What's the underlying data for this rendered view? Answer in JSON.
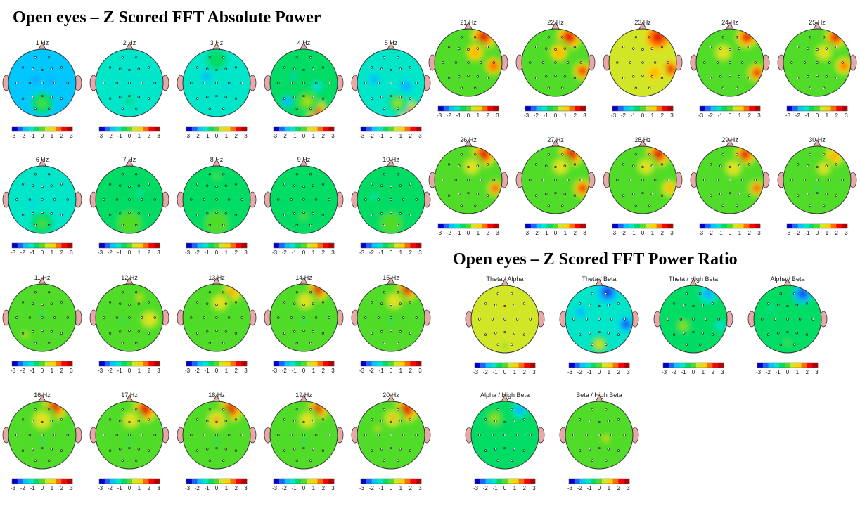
{
  "sections": {
    "absolute_title": "Open eyes – Z Scored FFT Absolute Power",
    "ratio_title": "Open eyes – Z Scored FFT Power Ratio"
  },
  "colors": {
    "scale": [
      "#0000c8",
      "#1e64ff",
      "#00c8ff",
      "#00e6c8",
      "#00dc64",
      "#50dc28",
      "#d2e628",
      "#ffd200",
      "#ff6e00",
      "#ff0000",
      "#b40000"
    ],
    "head_outline": "#333333",
    "ear_fill": "#e8a8a8",
    "electrode": "#000000"
  },
  "colorbar": {
    "ticks": [
      "-3",
      "-2",
      "-1",
      "0",
      "1",
      "2",
      "3"
    ],
    "range": [
      -3,
      3
    ]
  },
  "chart_data": {
    "type": "heatmap",
    "measure": "Z score",
    "layout": {
      "absolute_rows": [
        [
          "1 Hz",
          "2 Hz",
          "3 Hz",
          "4 Hz",
          "5 Hz"
        ],
        [
          "6 Hz",
          "7 Hz",
          "8 Hz",
          "9 Hz",
          "10 Hz"
        ],
        [
          "11 Hz",
          "12 Hz",
          "13 Hz",
          "14 Hz",
          "15 Hz"
        ],
        [
          "16 Hz",
          "17 Hz",
          "18 Hz",
          "19 Hz",
          "20 Hz"
        ],
        [
          "21 Hz",
          "22 Hz",
          "23 Hz",
          "24 Hz",
          "25 Hz"
        ],
        [
          "26 Hz",
          "27 Hz",
          "28 Hz",
          "29 Hz",
          "30 Hz"
        ]
      ],
      "ratio_rows": [
        [
          "Theta / Alpha",
          "Theta / Beta",
          "Theta / High Beta",
          "Alpha / Beta"
        ],
        [
          "Alpha / High Beta",
          "Beta / High Beta"
        ]
      ]
    },
    "maps": {
      "1 Hz": {
        "base": -1.6,
        "spots": [
          {
            "x": -0.2,
            "y": -0.1,
            "r": 0.32,
            "v": -2.4
          },
          {
            "x": 0.25,
            "y": -0.05,
            "r": 0.28,
            "v": -2.2
          },
          {
            "x": 0,
            "y": 0.6,
            "r": 0.45,
            "v": -0.2
          }
        ]
      },
      "2 Hz": {
        "base": -1.4,
        "spots": [
          {
            "x": 0.1,
            "y": -0.1,
            "r": 0.2,
            "v": -2.0
          },
          {
            "x": 0,
            "y": 0.55,
            "r": 0.45,
            "v": -0.6
          }
        ]
      },
      "3 Hz": {
        "base": -1.3,
        "spots": [
          {
            "x": -0.3,
            "y": -0.2,
            "r": 0.2,
            "v": -2.2
          },
          {
            "x": 0.3,
            "y": 0.1,
            "r": 0.25,
            "v": -2.0
          },
          {
            "x": 0,
            "y": -0.7,
            "r": 0.4,
            "v": -0.4
          }
        ]
      },
      "4 Hz": {
        "base": -0.9,
        "spots": [
          {
            "x": 0.35,
            "y": 0.8,
            "r": 0.35,
            "v": 3.0
          },
          {
            "x": 0.1,
            "y": 0.55,
            "r": 0.3,
            "v": 0.9
          },
          {
            "x": -0.5,
            "y": 0.55,
            "r": 0.2,
            "v": -2.2
          },
          {
            "x": 0.4,
            "y": 0.1,
            "r": 0.2,
            "v": -2.0
          },
          {
            "x": -0.3,
            "y": -0.2,
            "r": 0.25,
            "v": -1.6
          }
        ]
      },
      "5 Hz": {
        "base": -1.2,
        "spots": [
          {
            "x": 0.45,
            "y": 0.8,
            "r": 0.35,
            "v": 2.8
          },
          {
            "x": 0.2,
            "y": 0.6,
            "r": 0.3,
            "v": 0.5
          },
          {
            "x": -0.5,
            "y": -0.1,
            "r": 0.2,
            "v": -2.4
          },
          {
            "x": 0.45,
            "y": 0.1,
            "r": 0.25,
            "v": -2.4
          }
        ]
      },
      "6 Hz": {
        "base": -1.5,
        "spots": [
          {
            "x": 0,
            "y": 0.7,
            "r": 0.45,
            "v": -0.3
          },
          {
            "x": -0.3,
            "y": 0.1,
            "r": 0.3,
            "v": -1.9
          }
        ]
      },
      "7 Hz": {
        "base": -0.9,
        "spots": [
          {
            "x": 0,
            "y": 0.7,
            "r": 0.45,
            "v": 0.3
          },
          {
            "x": 0.3,
            "y": -0.2,
            "r": 0.3,
            "v": -1.2
          }
        ]
      },
      "8 Hz": {
        "base": -0.7,
        "spots": [
          {
            "x": 0,
            "y": 0.7,
            "r": 0.45,
            "v": 0.3
          },
          {
            "x": 0,
            "y": -0.7,
            "r": 0.35,
            "v": 0.1
          }
        ]
      },
      "9 Hz": {
        "base": -0.8,
        "spots": [
          {
            "x": 0,
            "y": 0.5,
            "r": 0.4,
            "v": -0.3
          }
        ]
      },
      "10 Hz": {
        "base": -0.6,
        "spots": [
          {
            "x": 0,
            "y": 0.7,
            "r": 0.4,
            "v": 0.3
          },
          {
            "x": -0.5,
            "y": -0.1,
            "r": 0.3,
            "v": -1.0
          }
        ]
      },
      "11 Hz": {
        "base": 0.1,
        "spots": [
          {
            "x": 0,
            "y": -0.1,
            "r": 0.3,
            "v": -0.6
          },
          {
            "x": -0.5,
            "y": 0.5,
            "r": 0.3,
            "v": 0.5
          }
        ]
      },
      "12 Hz": {
        "base": 0.3,
        "spots": [
          {
            "x": 0.6,
            "y": 0.05,
            "r": 0.3,
            "v": 1.4
          },
          {
            "x": 0.3,
            "y": -0.6,
            "r": 0.3,
            "v": 1.0
          },
          {
            "x": -0.2,
            "y": 0.1,
            "r": 0.3,
            "v": -0.4
          }
        ]
      },
      "13 Hz": {
        "base": 0.1,
        "spots": [
          {
            "x": 0.45,
            "y": -0.75,
            "r": 0.3,
            "v": 2.0
          },
          {
            "x": 0.1,
            "y": -0.45,
            "r": 0.3,
            "v": 1.0
          },
          {
            "x": -0.3,
            "y": 0.1,
            "r": 0.3,
            "v": -0.3
          }
        ]
      },
      "14 Hz": {
        "base": 0.1,
        "spots": [
          {
            "x": 0.4,
            "y": -0.8,
            "r": 0.3,
            "v": 2.8
          },
          {
            "x": 0.05,
            "y": -0.5,
            "r": 0.3,
            "v": 1.2
          },
          {
            "x": 0,
            "y": 0.1,
            "r": 0.3,
            "v": -0.6
          }
        ]
      },
      "15 Hz": {
        "base": 0.1,
        "spots": [
          {
            "x": 0.45,
            "y": -0.8,
            "r": 0.3,
            "v": 3.0
          },
          {
            "x": 0.1,
            "y": -0.5,
            "r": 0.3,
            "v": 1.4
          },
          {
            "x": 0,
            "y": 0.1,
            "r": 0.3,
            "v": -0.5
          }
        ]
      },
      "16 Hz": {
        "base": 0.2,
        "spots": [
          {
            "x": 0.35,
            "y": -0.8,
            "r": 0.35,
            "v": 3.2
          },
          {
            "x": 0,
            "y": -0.45,
            "r": 0.35,
            "v": 1.4
          },
          {
            "x": 0,
            "y": 0.2,
            "r": 0.3,
            "v": -0.5
          }
        ]
      },
      "17 Hz": {
        "base": 0.2,
        "spots": [
          {
            "x": 0.45,
            "y": -0.75,
            "r": 0.35,
            "v": 3.2
          },
          {
            "x": 0.05,
            "y": -0.45,
            "r": 0.3,
            "v": 1.3
          },
          {
            "x": 0,
            "y": 0.2,
            "r": 0.3,
            "v": -0.5
          }
        ]
      },
      "18 Hz": {
        "base": 0.2,
        "spots": [
          {
            "x": 0.4,
            "y": -0.75,
            "r": 0.35,
            "v": 3.2
          },
          {
            "x": 0,
            "y": -0.45,
            "r": 0.35,
            "v": 1.5
          },
          {
            "x": 0,
            "y": 0.2,
            "r": 0.3,
            "v": -0.5
          }
        ]
      },
      "19 Hz": {
        "base": 0.2,
        "spots": [
          {
            "x": 0.4,
            "y": -0.75,
            "r": 0.3,
            "v": 3.2
          },
          {
            "x": 0.1,
            "y": -0.45,
            "r": 0.3,
            "v": 1.4
          },
          {
            "x": 0,
            "y": 0.2,
            "r": 0.3,
            "v": -0.6
          }
        ]
      },
      "20 Hz": {
        "base": 0.2,
        "spots": [
          {
            "x": 0.45,
            "y": -0.75,
            "r": 0.35,
            "v": 3.2
          },
          {
            "x": 0.05,
            "y": -0.5,
            "r": 0.3,
            "v": 1.5
          },
          {
            "x": -0.4,
            "y": -0.2,
            "r": 0.25,
            "v": 1.0
          }
        ]
      },
      "21 Hz": {
        "base": 0.3,
        "spots": [
          {
            "x": 0.45,
            "y": -0.75,
            "r": 0.35,
            "v": 3.2
          },
          {
            "x": 0.75,
            "y": 0.1,
            "r": 0.25,
            "v": 2.2
          },
          {
            "x": 0.2,
            "y": -0.3,
            "r": 0.3,
            "v": 1.5
          }
        ]
      },
      "22 Hz": {
        "base": 0.3,
        "spots": [
          {
            "x": 0.4,
            "y": -0.75,
            "r": 0.35,
            "v": 3.2
          },
          {
            "x": 0.8,
            "y": 0.25,
            "r": 0.25,
            "v": 3.0
          },
          {
            "x": 0.1,
            "y": -0.3,
            "r": 0.3,
            "v": 1.5
          }
        ]
      },
      "23 Hz": {
        "base": 0.4,
        "spots": [
          {
            "x": 0.45,
            "y": -0.75,
            "r": 0.35,
            "v": 3.2
          },
          {
            "x": 0.8,
            "y": 0.2,
            "r": 0.25,
            "v": 3.0
          },
          {
            "x": 0.35,
            "y": 0.3,
            "r": 0.3,
            "v": 1.6
          }
        ]
      },
      "24 Hz": {
        "base": 0.3,
        "spots": [
          {
            "x": 0.5,
            "y": -0.75,
            "r": 0.3,
            "v": 3.2
          },
          {
            "x": 0.8,
            "y": 0.3,
            "r": 0.25,
            "v": 3.0
          },
          {
            "x": -0.2,
            "y": -0.3,
            "r": 0.3,
            "v": 1.2
          }
        ]
      },
      "25 Hz": {
        "base": 0.3,
        "spots": [
          {
            "x": 0.55,
            "y": -0.75,
            "r": 0.3,
            "v": 3.2
          },
          {
            "x": 0.8,
            "y": 0.1,
            "r": 0.25,
            "v": 2.4
          },
          {
            "x": 0.2,
            "y": -0.3,
            "r": 0.3,
            "v": 1.4
          }
        ]
      },
      "26 Hz": {
        "base": 0.2,
        "spots": [
          {
            "x": 0.45,
            "y": -0.75,
            "r": 0.35,
            "v": 3.2
          },
          {
            "x": 0.8,
            "y": 0.25,
            "r": 0.25,
            "v": 2.2
          },
          {
            "x": 0.1,
            "y": -0.4,
            "r": 0.3,
            "v": 1.3
          }
        ]
      },
      "27 Hz": {
        "base": 0.2,
        "spots": [
          {
            "x": 0.45,
            "y": -0.75,
            "r": 0.35,
            "v": 3.2
          },
          {
            "x": 0.8,
            "y": 0.25,
            "r": 0.25,
            "v": 3.0
          },
          {
            "x": 0.15,
            "y": -0.4,
            "r": 0.3,
            "v": 1.3
          }
        ]
      },
      "28 Hz": {
        "base": 0.2,
        "spots": [
          {
            "x": 0.45,
            "y": -0.75,
            "r": 0.35,
            "v": 3.0
          },
          {
            "x": 0.8,
            "y": 0.25,
            "r": 0.25,
            "v": 2.0
          },
          {
            "x": 0.1,
            "y": -0.4,
            "r": 0.3,
            "v": 1.3
          }
        ]
      },
      "29 Hz": {
        "base": 0.2,
        "spots": [
          {
            "x": 0.45,
            "y": -0.75,
            "r": 0.3,
            "v": 3.2
          },
          {
            "x": 0.8,
            "y": 0.25,
            "r": 0.25,
            "v": 2.2
          },
          {
            "x": 0.1,
            "y": -0.35,
            "r": 0.3,
            "v": 1.2
          }
        ]
      },
      "30 Hz": {
        "base": 0.0,
        "spots": [
          {
            "x": 0.5,
            "y": -0.7,
            "r": 0.3,
            "v": 2.0
          },
          {
            "x": 0.2,
            "y": -0.35,
            "r": 0.25,
            "v": 1.2
          },
          {
            "x": 0,
            "y": 0.25,
            "r": 0.3,
            "v": -0.6
          }
        ]
      },
      "Theta / Alpha": {
        "base": 0.5,
        "spots": [
          {
            "x": 0,
            "y": -0.4,
            "r": 0.2,
            "v": 1.0
          },
          {
            "x": 0,
            "y": 0.8,
            "r": 0.3,
            "v": 0.2
          }
        ]
      },
      "Theta / Beta": {
        "base": -1.1,
        "spots": [
          {
            "x": 0.25,
            "y": -0.8,
            "r": 0.35,
            "v": -3.0
          },
          {
            "x": -0.55,
            "y": -0.2,
            "r": 0.2,
            "v": -2.4
          },
          {
            "x": 0.8,
            "y": 0.15,
            "r": 0.25,
            "v": -3.0
          },
          {
            "x": 0,
            "y": 0.75,
            "r": 0.25,
            "v": 1.0
          }
        ]
      },
      "Theta / High Beta": {
        "base": -0.6,
        "spots": [
          {
            "x": 0.45,
            "y": -0.75,
            "r": 0.3,
            "v": -2.6
          },
          {
            "x": 0.8,
            "y": 0.2,
            "r": 0.2,
            "v": -2.0
          },
          {
            "x": -0.3,
            "y": 0.2,
            "r": 0.25,
            "v": 0.5
          }
        ]
      },
      "Alpha / Beta": {
        "base": -0.9,
        "spots": [
          {
            "x": 0.45,
            "y": -0.75,
            "r": 0.3,
            "v": -2.8
          },
          {
            "x": -0.5,
            "y": -0.3,
            "r": 0.25,
            "v": -1.4
          },
          {
            "x": 0,
            "y": 0.7,
            "r": 0.3,
            "v": -0.2
          }
        ]
      },
      "Alpha / High Beta": {
        "base": -0.5,
        "spots": [
          {
            "x": 0.45,
            "y": -0.75,
            "r": 0.25,
            "v": -2.2
          },
          {
            "x": -0.3,
            "y": -0.5,
            "r": 0.3,
            "v": 0.4
          }
        ]
      },
      "Beta / High Beta": {
        "base": 0.3,
        "spots": [
          {
            "x": 0.2,
            "y": 0.1,
            "r": 0.3,
            "v": 0.9
          },
          {
            "x": -0.3,
            "y": -0.4,
            "r": 0.3,
            "v": 0.1
          }
        ]
      }
    }
  }
}
